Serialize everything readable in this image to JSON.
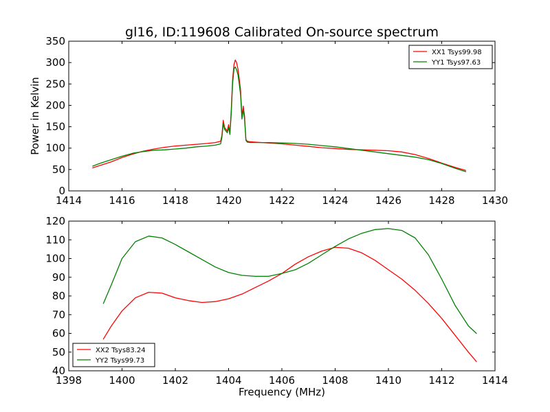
{
  "chart_data": [
    {
      "type": "line",
      "title": "gl16, ID:119608 Calibrated On-source spectrum",
      "xlabel": "",
      "ylabel": "Power in Kelvin",
      "xlim": [
        1414,
        1430
      ],
      "ylim": [
        0,
        350
      ],
      "xticks": [
        1414,
        1416,
        1418,
        1420,
        1422,
        1424,
        1426,
        1428,
        1430
      ],
      "yticks": [
        0,
        50,
        100,
        150,
        200,
        250,
        300,
        350
      ],
      "legend_position": "upper right",
      "series": [
        {
          "name": "XX1 Tsys99.98",
          "color": "#ff0000",
          "x": [
            1414.9,
            1415.2,
            1415.6,
            1416.0,
            1416.4,
            1416.8,
            1417.2,
            1417.6,
            1418.0,
            1418.4,
            1418.8,
            1419.2,
            1419.5,
            1419.7,
            1419.75,
            1419.8,
            1419.85,
            1419.95,
            1420.0,
            1420.05,
            1420.1,
            1420.15,
            1420.2,
            1420.25,
            1420.3,
            1420.35,
            1420.4,
            1420.45,
            1420.5,
            1420.55,
            1420.6,
            1420.65,
            1420.7,
            1420.8,
            1421.0,
            1421.5,
            1422.0,
            1422.5,
            1423.0,
            1423.5,
            1424.0,
            1424.5,
            1425.0,
            1425.5,
            1426.0,
            1426.5,
            1427.0,
            1427.5,
            1428.0,
            1428.5,
            1428.9
          ],
          "y": [
            54,
            60,
            68,
            78,
            86,
            93,
            98,
            102,
            105,
            107,
            109,
            111,
            113,
            116,
            130,
            165,
            148,
            140,
            155,
            135,
            190,
            260,
            295,
            306,
            300,
            285,
            262,
            235,
            175,
            198,
            175,
            120,
            116,
            115,
            114,
            112,
            110,
            107,
            104,
            101,
            99,
            97,
            96,
            95,
            94,
            91,
            85,
            76,
            65,
            55,
            48
          ]
        },
        {
          "name": "YY1 Tsys97.63",
          "color": "#008000",
          "x": [
            1414.9,
            1415.2,
            1415.6,
            1416.0,
            1416.4,
            1416.8,
            1417.2,
            1417.6,
            1418.0,
            1418.4,
            1418.8,
            1419.2,
            1419.5,
            1419.7,
            1419.75,
            1419.8,
            1419.85,
            1419.95,
            1420.0,
            1420.05,
            1420.1,
            1420.15,
            1420.2,
            1420.25,
            1420.3,
            1420.35,
            1420.4,
            1420.45,
            1420.5,
            1420.55,
            1420.6,
            1420.65,
            1420.7,
            1420.8,
            1421.0,
            1421.5,
            1422.0,
            1422.5,
            1423.0,
            1423.5,
            1424.0,
            1424.5,
            1425.0,
            1425.5,
            1426.0,
            1426.5,
            1427.0,
            1427.5,
            1428.0,
            1428.5,
            1428.9
          ],
          "y": [
            58,
            65,
            73,
            81,
            88,
            92,
            95,
            96,
            98,
            100,
            103,
            105,
            107,
            110,
            125,
            157,
            144,
            136,
            148,
            132,
            182,
            250,
            285,
            290,
            283,
            272,
            250,
            225,
            168,
            190,
            168,
            118,
            114,
            113,
            113,
            113,
            112,
            111,
            109,
            106,
            103,
            99,
            95,
            91,
            87,
            83,
            79,
            73,
            64,
            53,
            45
          ]
        }
      ]
    },
    {
      "type": "line",
      "title": "",
      "xlabel": "Frequency (MHz)",
      "ylabel": "",
      "xlim": [
        1398,
        1414
      ],
      "ylim": [
        40,
        120
      ],
      "xticks": [
        1398,
        1400,
        1402,
        1404,
        1406,
        1408,
        1410,
        1412,
        1414
      ],
      "yticks": [
        40,
        50,
        60,
        70,
        80,
        90,
        100,
        110,
        120
      ],
      "legend_position": "lower left",
      "series": [
        {
          "name": "XX2 Tsys83.24",
          "color": "#ff0000",
          "x": [
            1399.3,
            1399.6,
            1400.0,
            1400.5,
            1401.0,
            1401.5,
            1402.0,
            1402.5,
            1403.0,
            1403.5,
            1404.0,
            1404.5,
            1405.0,
            1405.5,
            1406.0,
            1406.5,
            1407.0,
            1407.5,
            1408.0,
            1408.5,
            1409.0,
            1409.5,
            1410.0,
            1410.5,
            1411.0,
            1411.5,
            1412.0,
            1412.5,
            1413.0,
            1413.3
          ],
          "y": [
            57,
            64,
            72,
            79,
            82,
            81.5,
            79,
            77.5,
            76.5,
            77,
            78.5,
            81,
            84.5,
            88,
            92,
            97,
            101,
            104,
            106,
            105.5,
            103,
            99,
            94,
            89,
            83,
            76,
            68,
            59,
            50,
            45
          ]
        },
        {
          "name": "YY2 Tsys99.73",
          "color": "#008000",
          "x": [
            1399.3,
            1399.6,
            1400.0,
            1400.5,
            1401.0,
            1401.5,
            1402.0,
            1402.5,
            1403.0,
            1403.5,
            1404.0,
            1404.5,
            1405.0,
            1405.5,
            1406.0,
            1406.5,
            1407.0,
            1407.5,
            1408.0,
            1408.5,
            1409.0,
            1409.5,
            1410.0,
            1410.5,
            1411.0,
            1411.5,
            1412.0,
            1412.5,
            1413.0,
            1413.3
          ],
          "y": [
            76,
            86,
            100,
            109,
            112,
            111,
            107.5,
            103.5,
            99.5,
            95.5,
            92.5,
            91,
            90.5,
            90.5,
            92,
            94,
            97.5,
            102,
            106.5,
            110.5,
            113.5,
            115.5,
            116,
            115,
            111,
            102,
            89,
            75,
            64,
            60
          ]
        }
      ]
    }
  ]
}
